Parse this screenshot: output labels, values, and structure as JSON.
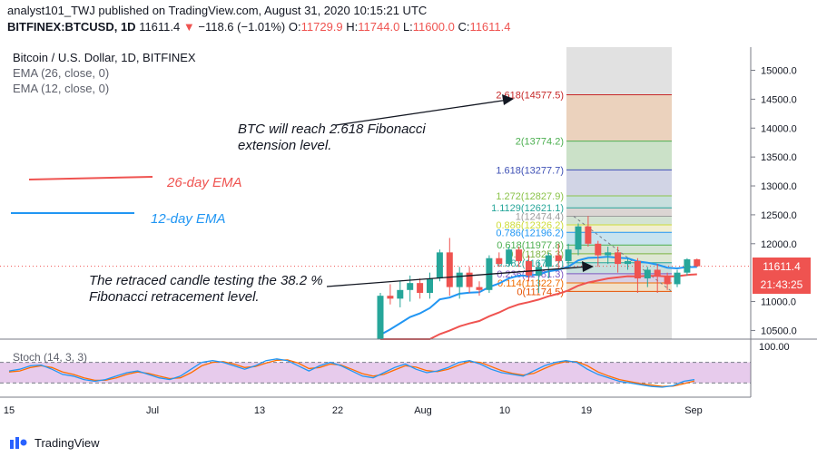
{
  "header": {
    "line1": "analyst101_TWJ published on TradingView.com, August 31, 2020 10:15:21 UTC",
    "symbol": "BITFINEX:BTCUSD, 1D",
    "last": "11611.4",
    "change": "−118.6 (−1.01%)",
    "o_label": "O:",
    "o_value": "11729.9",
    "h_label": "H:",
    "h_value": "11744.0",
    "l_label": "L:",
    "l_value": "11600.0",
    "c_label": "C:",
    "c_value": "11611.4"
  },
  "legend": {
    "title": "Bitcoin / U.S. Dollar, 1D, BITFINEX",
    "ema26": "EMA (26, close, 0)",
    "ema12": "EMA (12, close, 0)"
  },
  "annotations": {
    "ema26_label": "26-day EMA",
    "ema12_label": "12-day EMA",
    "note1_line1": "BTC will reach 2.618 Fibonacci",
    "note1_line2": "extension level.",
    "note2_line1": "The retraced candle testing the 38.2 %",
    "note2_line2": "Fibonacci retracement level."
  },
  "price_badge": "11611.4",
  "timer_badge": "21:43:25",
  "stoch_label": "Stoch (14, 3, 3)",
  "stoch_axis_label": "100.00",
  "footer": {
    "brand": "TradingView"
  },
  "colors": {
    "up": "#26a69a",
    "down": "#ef5350",
    "ema26": "#ef5350",
    "ema12": "#2196f3",
    "stoch_k": "#2196f3",
    "stoch_d": "#ff6d00",
    "stoch_band": "#e1bee7"
  },
  "chart_data": {
    "type": "candlestick",
    "y_ticks": [
      "15000.0",
      "14500.0",
      "14000.0",
      "13500.0",
      "13000.0",
      "12500.0",
      "12000.0",
      "11000.0",
      "10500.0"
    ],
    "x_ticks": [
      "15",
      "Jul",
      "13",
      "22",
      "Aug",
      "10",
      "19",
      "Sep"
    ],
    "ylim": [
      10350,
      15400
    ],
    "fib_levels": [
      {
        "label": "2.618(14577.5)",
        "value": 14577.5
      },
      {
        "label": "2(13774.2)",
        "value": 13774.2
      },
      {
        "label": "1.618(13277.7)",
        "value": 13277.7
      },
      {
        "label": "1.272(12827.9)",
        "value": 12827.9
      },
      {
        "label": "1.1129(12621.1)",
        "value": 12621.1
      },
      {
        "label": "1(12474.4)",
        "value": 12474.4
      },
      {
        "label": "0.886(12326.2)",
        "value": 12326.2
      },
      {
        "label": "0.786(12196.2)",
        "value": 12196.2
      },
      {
        "label": "0.618(11977.8)",
        "value": 11977.8
      },
      {
        "label": "0.5(11825.3)",
        "value": 11825.3
      },
      {
        "label": "0.382(11671.2)",
        "value": 11671.2
      },
      {
        "label": "0.236(11481.3)",
        "value": 11481.3
      },
      {
        "label": "0.114(11322.7)",
        "value": 11322.7
      },
      {
        "label": "0(11174.5)",
        "value": 11174.5
      }
    ],
    "candles": [
      {
        "o": 10300,
        "h": 11150,
        "l": 10280,
        "c": 11100
      },
      {
        "o": 11100,
        "h": 11300,
        "l": 10950,
        "c": 11050
      },
      {
        "o": 11050,
        "h": 11350,
        "l": 10900,
        "c": 11200
      },
      {
        "o": 11200,
        "h": 11450,
        "l": 11000,
        "c": 11320
      },
      {
        "o": 11320,
        "h": 11400,
        "l": 11050,
        "c": 11150
      },
      {
        "o": 11150,
        "h": 11500,
        "l": 11050,
        "c": 11400
      },
      {
        "o": 11400,
        "h": 11900,
        "l": 11350,
        "c": 11850
      },
      {
        "o": 11850,
        "h": 12100,
        "l": 11100,
        "c": 11250
      },
      {
        "o": 11250,
        "h": 11600,
        "l": 11050,
        "c": 11500
      },
      {
        "o": 11500,
        "h": 11600,
        "l": 11150,
        "c": 11250
      },
      {
        "o": 11250,
        "h": 11350,
        "l": 11100,
        "c": 11200
      },
      {
        "o": 11200,
        "h": 11800,
        "l": 11150,
        "c": 11750
      },
      {
        "o": 11750,
        "h": 11850,
        "l": 11600,
        "c": 11650
      },
      {
        "o": 11650,
        "h": 11950,
        "l": 11600,
        "c": 11900
      },
      {
        "o": 11900,
        "h": 11950,
        "l": 11600,
        "c": 11700
      },
      {
        "o": 11700,
        "h": 11800,
        "l": 11350,
        "c": 11450
      },
      {
        "o": 11450,
        "h": 11700,
        "l": 11150,
        "c": 11600
      },
      {
        "o": 11600,
        "h": 11850,
        "l": 11400,
        "c": 11800
      },
      {
        "o": 11800,
        "h": 12000,
        "l": 11550,
        "c": 11700
      },
      {
        "o": 11700,
        "h": 12000,
        "l": 11600,
        "c": 11900
      },
      {
        "o": 11900,
        "h": 12350,
        "l": 11800,
        "c": 12300
      },
      {
        "o": 12300,
        "h": 12480,
        "l": 11950,
        "c": 12000
      },
      {
        "o": 12000,
        "h": 12050,
        "l": 11600,
        "c": 11800
      },
      {
        "o": 11800,
        "h": 11950,
        "l": 11650,
        "c": 11850
      },
      {
        "o": 11850,
        "h": 11950,
        "l": 11500,
        "c": 11650
      },
      {
        "o": 11650,
        "h": 11750,
        "l": 11550,
        "c": 11700
      },
      {
        "o": 11700,
        "h": 11750,
        "l": 11150,
        "c": 11400
      },
      {
        "o": 11400,
        "h": 11600,
        "l": 11250,
        "c": 11550
      },
      {
        "o": 11550,
        "h": 11650,
        "l": 11150,
        "c": 11450
      },
      {
        "o": 11450,
        "h": 11500,
        "l": 11200,
        "c": 11300
      },
      {
        "o": 11300,
        "h": 11550,
        "l": 11250,
        "c": 11500
      },
      {
        "o": 11500,
        "h": 11750,
        "l": 11450,
        "c": 11730
      },
      {
        "o": 11730,
        "h": 11744,
        "l": 11600,
        "c": 11611
      }
    ],
    "stoch": {
      "ylim": [
        0,
        100
      ],
      "k": [
        55,
        60,
        70,
        72,
        60,
        45,
        40,
        30,
        25,
        30,
        40,
        50,
        55,
        45,
        35,
        30,
        40,
        60,
        80,
        85,
        80,
        70,
        60,
        70,
        85,
        90,
        85,
        70,
        55,
        70,
        80,
        70,
        55,
        40,
        35,
        50,
        65,
        75,
        60,
        50,
        55,
        65,
        80,
        85,
        75,
        60,
        50,
        45,
        40,
        55,
        70,
        80,
        85,
        80,
        60,
        45,
        35,
        25,
        20,
        15,
        10,
        8,
        12,
        25,
        30
      ],
      "d": [
        52,
        55,
        65,
        70,
        65,
        52,
        45,
        35,
        28,
        28,
        35,
        45,
        52,
        48,
        40,
        33,
        35,
        50,
        70,
        80,
        82,
        75,
        65,
        68,
        78,
        86,
        87,
        78,
        62,
        65,
        75,
        72,
        60,
        47,
        40,
        45,
        58,
        70,
        66,
        56,
        53,
        60,
        72,
        82,
        80,
        68,
        56,
        48,
        43,
        48,
        62,
        75,
        82,
        82,
        70,
        52,
        40,
        30,
        24,
        18,
        14,
        10,
        11,
        18,
        26
      ]
    }
  }
}
